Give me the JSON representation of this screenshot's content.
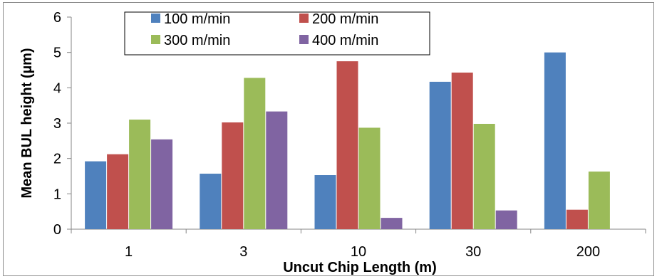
{
  "chart_data": {
    "type": "bar",
    "categories": [
      "1",
      "3",
      "10",
      "30",
      "200"
    ],
    "series": [
      {
        "name": "100 m/min",
        "color": "#4f81bd",
        "values": [
          1.92,
          1.57,
          1.53,
          4.17,
          5.0
        ]
      },
      {
        "name": "200 m/min",
        "color": "#c0504d",
        "values": [
          2.12,
          3.02,
          4.75,
          4.43,
          0.55
        ]
      },
      {
        "name": "300 m/min",
        "color": "#9bbb59",
        "values": [
          3.1,
          4.28,
          2.87,
          2.98,
          1.63
        ]
      },
      {
        "name": "400 m/min",
        "color": "#8064a2",
        "values": [
          2.54,
          3.33,
          0.32,
          0.53,
          null
        ]
      }
    ],
    "title": "",
    "xlabel": "Uncut Chip Length (m)",
    "ylabel": "Mean BUL height (µm)",
    "ylim": [
      0,
      6
    ],
    "yticks": [
      "0",
      "1",
      "2",
      "3",
      "4",
      "5",
      "6"
    ],
    "grid": false,
    "legend_position": "top-center"
  }
}
